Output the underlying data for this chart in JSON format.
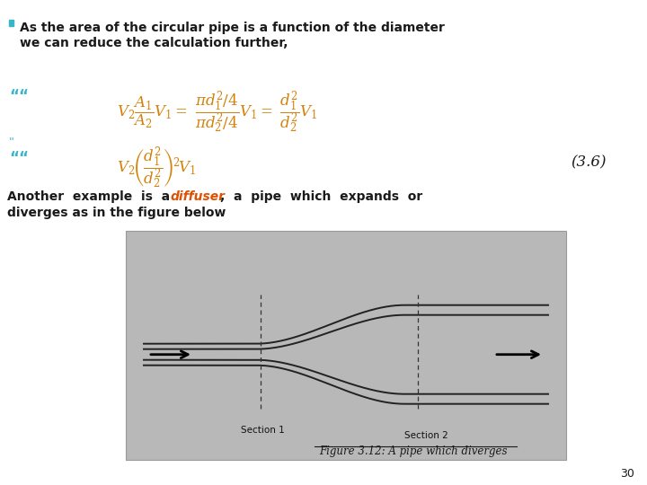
{
  "bg_color": "#ffffff",
  "bullet_text_line1": "As the area of the circular pipe is a function of the diameter",
  "bullet_text_line2": "we can reduce the calculation further,",
  "bullet_color": "#3ab5c6",
  "text_color": "#1a1a1a",
  "formula_color": "#d4820a",
  "quote_color": "#3ab5c6",
  "equation_number": "(3.6)",
  "page_number": "30",
  "fig_caption": "Figure 3.12: A pipe which diverges",
  "fig_bg": "#b8b8b8"
}
